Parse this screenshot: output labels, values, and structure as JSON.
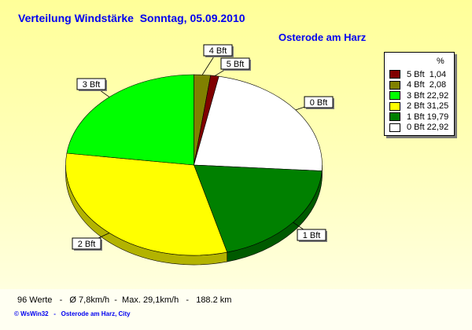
{
  "title": "Verteilung Windstärke  Sonntag, 05.09.2010",
  "location": "Osterode am Harz",
  "footer": {
    "stats": "96 Werte   -   Ø 7,8km/h  -  Max. 29,1km/h   -   188.2 km",
    "credit": "© WsWin32   -   Osterode am Harz, City"
  },
  "chart_data": {
    "type": "pie",
    "title": "Verteilung Windstärke  Sonntag, 05.09.2010",
    "legend_header": "%",
    "legend_position": "right",
    "slices": [
      {
        "label": "4 Bft",
        "value": 2.08,
        "color": "#808000"
      },
      {
        "label": "5 Bft",
        "value": 1.04,
        "color": "#800000"
      },
      {
        "label": "0 Bft",
        "value": 22.92,
        "color": "#FFFFFF"
      },
      {
        "label": "1 Bft",
        "value": 19.79,
        "color": "#008000"
      },
      {
        "label": "2 Bft",
        "value": 31.25,
        "color": "#FFFF00"
      },
      {
        "label": "3 Bft",
        "value": 22.92,
        "color": "#00FF00"
      }
    ],
    "legend": [
      {
        "label": "5 Bft",
        "value": "1,04",
        "color": "#800000"
      },
      {
        "label": "4 Bft",
        "value": "2,08",
        "color": "#808000"
      },
      {
        "label": "3 Bft",
        "value": "22,92",
        "color": "#00FF00"
      },
      {
        "label": "2 Bft",
        "value": "31,25",
        "color": "#FFFF00"
      },
      {
        "label": "1 Bft",
        "value": "19,79",
        "color": "#008000"
      },
      {
        "label": "0 Bft",
        "value": "22,92",
        "color": "#FFFFFF"
      }
    ]
  }
}
